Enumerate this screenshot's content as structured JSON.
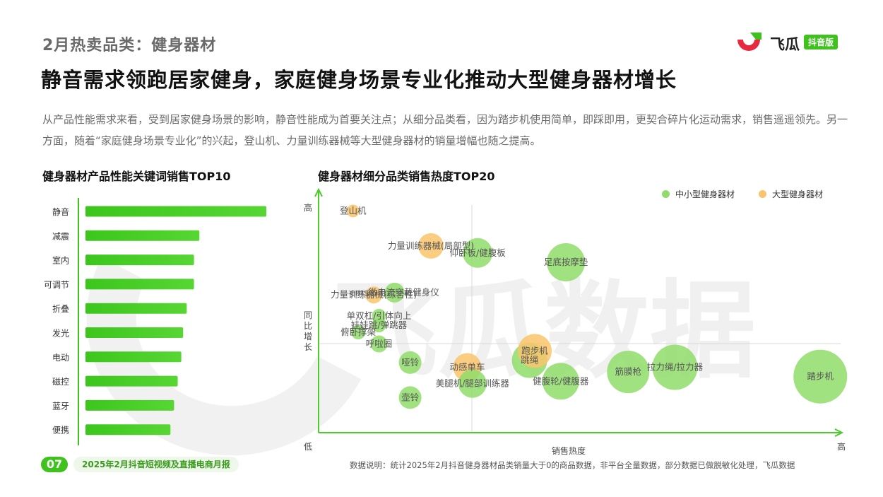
{
  "header": {
    "section_title": "2月热卖品类：健身器材",
    "main_title": "静音需求领跑居家健身，家庭健身场景专业化推动大型健身器材增长",
    "summary": "从产品性能需求来看，受到居家健身场景的影响，静音性能成为首要关注点；从细分品类看，因为踏步机使用简单，即踩即用，更契合碎片化运动需求，销售遥遥领先。另一方面，随着“家庭健身场景专业化”的兴起，登山机、力量训练器械等大型健身器材的销量增幅也随之提高。"
  },
  "logo": {
    "text": "飞瓜",
    "badge": "抖音版",
    "icon": "feigua-logo-icon"
  },
  "watermark": "飞瓜数据",
  "colors": {
    "green": "#3fc21e",
    "small_bubble": "#8fdc6a",
    "large_bubble": "#f9c46b",
    "axis": "#4ccb2c"
  },
  "chart_data": [
    {
      "type": "bar",
      "title": "健身器材产品性能关键词销售TOP10",
      "categories": [
        "静音",
        "减震",
        "室内",
        "可调节",
        "折叠",
        "发光",
        "电动",
        "磁控",
        "蓝牙",
        "便携"
      ],
      "values": [
        100,
        63,
        60,
        60,
        56,
        54,
        53,
        51,
        49,
        47
      ]
    },
    {
      "type": "scatter",
      "title": "健身器材细分品类销售热度TOP20",
      "xlabel": "销售热度",
      "ylabel": "同比增长",
      "x_low": "低",
      "x_high": "高",
      "y_high": "高",
      "legend": [
        {
          "name": "中小型健身器材",
          "color": "#8fdc6a"
        },
        {
          "name": "大型健身器材",
          "color": "#f9c46b"
        }
      ],
      "legend_position": "top-right",
      "points": [
        {
          "label": "登山机",
          "x": 5,
          "y": 92,
          "size": 9,
          "group": "large"
        },
        {
          "label": "力量训练器械(局部型)",
          "x": 20,
          "y": 77,
          "size": 18,
          "group": "large"
        },
        {
          "label": "仰卧板/健腹板",
          "x": 29,
          "y": 74,
          "size": 21,
          "group": "small"
        },
        {
          "label": "足底按摩垫",
          "x": 46,
          "y": 70,
          "size": 27,
          "group": "small"
        },
        {
          "label": "力量训练器械(综合性)",
          "x": 9,
          "y": 56,
          "size": 12,
          "group": "large"
        },
        {
          "label": "ems微电流穿戴健身仪",
          "x": 13,
          "y": 57,
          "size": 14,
          "group": "small"
        },
        {
          "label": "单双杠/引体向上",
          "x": 10,
          "y": 47,
          "size": 10,
          "group": "small"
        },
        {
          "label": "娃娃跳/弹跳器",
          "x": 10,
          "y": 43,
          "size": 10,
          "group": "small"
        },
        {
          "label": "俯卧撑架",
          "x": 6,
          "y": 40,
          "size": 10,
          "group": "small"
        },
        {
          "label": "呼啦圈",
          "x": 10,
          "y": 35,
          "size": 12,
          "group": "small"
        },
        {
          "label": "哑铃",
          "x": 16,
          "y": 27,
          "size": 16,
          "group": "small"
        },
        {
          "label": "动感单车",
          "x": 27,
          "y": 25,
          "size": 20,
          "group": "large"
        },
        {
          "label": "美腿机/腿部训练器",
          "x": 28,
          "y": 18,
          "size": 20,
          "group": "small"
        },
        {
          "label": "壶铃",
          "x": 16,
          "y": 12,
          "size": 16,
          "group": "small"
        },
        {
          "label": "跳绳",
          "x": 39,
          "y": 28,
          "size": 25,
          "group": "small"
        },
        {
          "label": "跑步机",
          "x": 40,
          "y": 32,
          "size": 24,
          "group": "large"
        },
        {
          "label": "健腹轮/健腹器",
          "x": 45,
          "y": 19,
          "size": 26,
          "group": "small"
        },
        {
          "label": "筋膜枪",
          "x": 58,
          "y": 23,
          "size": 30,
          "group": "small"
        },
        {
          "label": "拉力绳/拉力器",
          "x": 67,
          "y": 25,
          "size": 32,
          "group": "small"
        },
        {
          "label": "踏步机",
          "x": 95,
          "y": 21,
          "size": 38,
          "group": "small"
        }
      ]
    }
  ],
  "footer": {
    "page": "07",
    "report": "2025年2月抖音短视频及直播电商月报",
    "note": "数据说明：统计2025年2月抖音健身器材品类销量大于0的商品数据，非平台全量数据，部分数据已做脱敏化处理，飞瓜数据"
  }
}
